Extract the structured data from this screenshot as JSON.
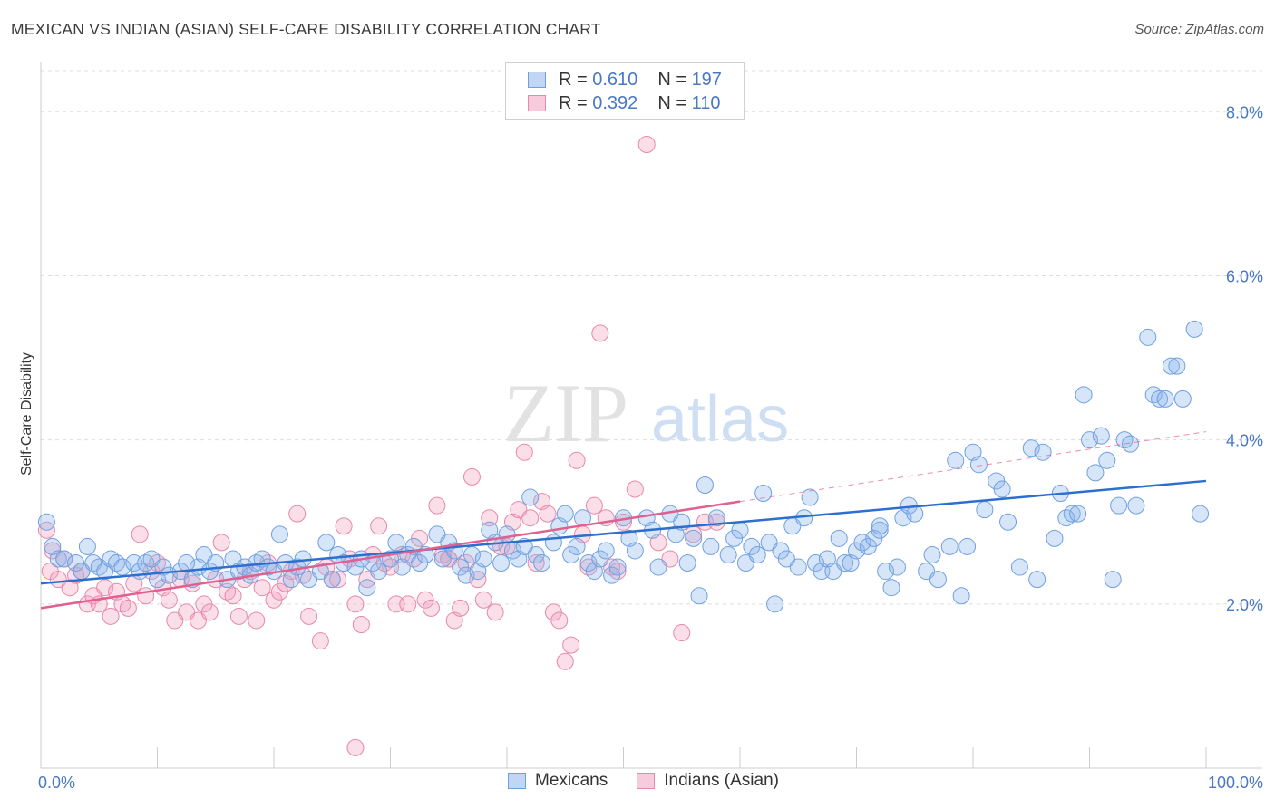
{
  "title": "MEXICAN VS INDIAN (ASIAN) SELF-CARE DISABILITY CORRELATION CHART",
  "source": "Source: ZipAtlas.com",
  "colors": {
    "blue": "#6fa0e0",
    "blue_fill": "rgba(140,180,235,0.35)",
    "blue_line": "#2d6fcf",
    "pink": "#e888ab",
    "pink_fill": "rgba(240,160,190,0.35)",
    "pink_line": "#e06090",
    "axis_text": "#4a78c4",
    "grid": "#dddddd"
  },
  "legend": {
    "rows": [
      {
        "r_label": "R =",
        "r_value": "0.610",
        "n_label": "N =",
        "n_value": "197"
      },
      {
        "r_label": "R =",
        "r_value": "0.392",
        "n_label": "N =",
        "n_value": "110"
      }
    ]
  },
  "bottom_legend": {
    "mexicans": "Mexicans",
    "indians": "Indians (Asian)"
  },
  "watermark": {
    "zip": "ZIP",
    "atlas": "atlas"
  },
  "chart_data": {
    "type": "scatter",
    "title": "MEXICAN VS INDIAN (ASIAN) SELF-CARE DISABILITY CORRELATION CHART",
    "xlabel": "",
    "ylabel": "Self-Care Disability",
    "xlim": [
      0,
      100
    ],
    "ylim": [
      0,
      8.5
    ],
    "x_ticks": [
      0,
      10,
      20,
      30,
      40,
      50,
      60,
      70,
      80,
      90,
      100
    ],
    "x_tick_labels": {
      "0": "0.0%",
      "100": "100.0%"
    },
    "y_ticks": [
      2,
      4,
      6,
      8
    ],
    "y_tick_labels": [
      "2.0%",
      "4.0%",
      "6.0%",
      "8.0%"
    ],
    "series": [
      {
        "name": "Mexicans",
        "r": 0.61,
        "n": 197,
        "trend": {
          "x0": 0,
          "y0": 2.25,
          "x1": 100,
          "y1": 3.5
        },
        "points": [
          [
            0.5,
            3.0
          ],
          [
            1.0,
            2.7
          ],
          [
            1.5,
            2.55
          ],
          [
            2.0,
            2.55
          ],
          [
            3.0,
            2.5
          ],
          [
            3.5,
            2.4
          ],
          [
            4.0,
            2.7
          ],
          [
            4.5,
            2.5
          ],
          [
            5.0,
            2.45
          ],
          [
            5.5,
            2.4
          ],
          [
            6.0,
            2.55
          ],
          [
            6.5,
            2.5
          ],
          [
            7.0,
            2.45
          ],
          [
            8.0,
            2.5
          ],
          [
            8.5,
            2.4
          ],
          [
            9.0,
            2.5
          ],
          [
            9.5,
            2.55
          ],
          [
            10.0,
            2.3
          ],
          [
            10.5,
            2.45
          ],
          [
            11.0,
            2.35
          ],
          [
            12.0,
            2.4
          ],
          [
            12.5,
            2.5
          ],
          [
            13.0,
            2.3
          ],
          [
            13.5,
            2.45
          ],
          [
            14.0,
            2.6
          ],
          [
            14.5,
            2.4
          ],
          [
            15.0,
            2.5
          ],
          [
            16.0,
            2.3
          ],
          [
            16.5,
            2.55
          ],
          [
            17.0,
            2.4
          ],
          [
            17.5,
            2.45
          ],
          [
            18.0,
            2.35
          ],
          [
            18.5,
            2.5
          ],
          [
            19.0,
            2.55
          ],
          [
            19.5,
            2.45
          ],
          [
            20.0,
            2.4
          ],
          [
            20.5,
            2.85
          ],
          [
            21.0,
            2.5
          ],
          [
            21.5,
            2.3
          ],
          [
            22.0,
            2.45
          ],
          [
            22.5,
            2.55
          ],
          [
            23.0,
            2.3
          ],
          [
            24.0,
            2.4
          ],
          [
            24.5,
            2.75
          ],
          [
            25.0,
            2.3
          ],
          [
            25.5,
            2.6
          ],
          [
            26.0,
            2.5
          ],
          [
            27.0,
            2.45
          ],
          [
            27.5,
            2.55
          ],
          [
            28.0,
            2.2
          ],
          [
            28.5,
            2.5
          ],
          [
            29.0,
            2.4
          ],
          [
            30.0,
            2.55
          ],
          [
            30.5,
            2.75
          ],
          [
            31.0,
            2.45
          ],
          [
            31.5,
            2.6
          ],
          [
            32.0,
            2.7
          ],
          [
            32.5,
            2.5
          ],
          [
            33.0,
            2.6
          ],
          [
            34.0,
            2.85
          ],
          [
            34.5,
            2.55
          ],
          [
            35.0,
            2.75
          ],
          [
            35.5,
            2.65
          ],
          [
            36.0,
            2.45
          ],
          [
            36.5,
            2.35
          ],
          [
            37.0,
            2.6
          ],
          [
            37.5,
            2.4
          ],
          [
            38.0,
            2.55
          ],
          [
            38.5,
            2.9
          ],
          [
            39.0,
            2.75
          ],
          [
            39.5,
            2.5
          ],
          [
            40.0,
            2.85
          ],
          [
            40.5,
            2.65
          ],
          [
            41.0,
            2.55
          ],
          [
            41.5,
            2.7
          ],
          [
            42.0,
            3.3
          ],
          [
            42.5,
            2.6
          ],
          [
            43.0,
            2.5
          ],
          [
            44.0,
            2.75
          ],
          [
            44.5,
            2.95
          ],
          [
            45.0,
            3.1
          ],
          [
            45.5,
            2.6
          ],
          [
            46.0,
            2.7
          ],
          [
            46.5,
            3.05
          ],
          [
            47.0,
            2.5
          ],
          [
            47.5,
            2.4
          ],
          [
            48.0,
            2.55
          ],
          [
            48.5,
            2.65
          ],
          [
            49.0,
            2.35
          ],
          [
            49.5,
            2.45
          ],
          [
            50.0,
            3.05
          ],
          [
            50.5,
            2.8
          ],
          [
            51.0,
            2.65
          ],
          [
            52.0,
            3.05
          ],
          [
            52.5,
            2.9
          ],
          [
            53.0,
            2.45
          ],
          [
            54.0,
            3.1
          ],
          [
            54.5,
            2.85
          ],
          [
            55.0,
            3.0
          ],
          [
            55.5,
            2.5
          ],
          [
            56.0,
            2.8
          ],
          [
            56.5,
            2.1
          ],
          [
            57.0,
            3.45
          ],
          [
            57.5,
            2.7
          ],
          [
            58.0,
            3.05
          ],
          [
            59.0,
            2.6
          ],
          [
            59.5,
            2.8
          ],
          [
            60.0,
            2.9
          ],
          [
            60.5,
            2.5
          ],
          [
            61.0,
            2.7
          ],
          [
            61.5,
            2.6
          ],
          [
            62.0,
            3.35
          ],
          [
            62.5,
            2.75
          ],
          [
            63.0,
            2.0
          ],
          [
            63.5,
            2.65
          ],
          [
            64.0,
            2.55
          ],
          [
            64.5,
            2.95
          ],
          [
            65.0,
            2.45
          ],
          [
            65.5,
            3.05
          ],
          [
            66.0,
            3.3
          ],
          [
            66.5,
            2.5
          ],
          [
            67.0,
            2.4
          ],
          [
            67.5,
            2.55
          ],
          [
            68.0,
            2.4
          ],
          [
            68.5,
            2.8
          ],
          [
            69.0,
            2.5
          ],
          [
            69.5,
            2.5
          ],
          [
            70.0,
            2.65
          ],
          [
            70.5,
            2.75
          ],
          [
            71.0,
            2.7
          ],
          [
            71.5,
            2.8
          ],
          [
            72.0,
            2.9
          ],
          [
            72.5,
            2.4
          ],
          [
            73.0,
            2.2
          ],
          [
            73.5,
            2.45
          ],
          [
            74.0,
            3.05
          ],
          [
            74.5,
            3.2
          ],
          [
            75.0,
            3.1
          ],
          [
            76.0,
            2.4
          ],
          [
            76.5,
            2.6
          ],
          [
            77.0,
            2.3
          ],
          [
            78.0,
            2.7
          ],
          [
            78.5,
            3.75
          ],
          [
            79.0,
            2.1
          ],
          [
            79.5,
            2.7
          ],
          [
            80.0,
            3.85
          ],
          [
            80.5,
            3.7
          ],
          [
            81.0,
            3.15
          ],
          [
            82.0,
            3.5
          ],
          [
            82.5,
            3.4
          ],
          [
            83.0,
            3.0
          ],
          [
            84.0,
            2.45
          ],
          [
            85.0,
            3.9
          ],
          [
            85.5,
            2.3
          ],
          [
            86.0,
            3.85
          ],
          [
            87.0,
            2.8
          ],
          [
            87.5,
            3.35
          ],
          [
            88.0,
            3.05
          ],
          [
            88.5,
            3.1
          ],
          [
            89.0,
            3.1
          ],
          [
            89.5,
            4.55
          ],
          [
            90.0,
            4.0
          ],
          [
            90.5,
            3.6
          ],
          [
            91.0,
            4.05
          ],
          [
            91.5,
            3.75
          ],
          [
            92.0,
            2.3
          ],
          [
            92.5,
            3.2
          ],
          [
            93.0,
            4.0
          ],
          [
            93.5,
            3.95
          ],
          [
            94.0,
            3.2
          ],
          [
            95.0,
            5.25
          ],
          [
            95.5,
            4.55
          ],
          [
            96.0,
            4.5
          ],
          [
            96.5,
            4.5
          ],
          [
            97.0,
            4.9
          ],
          [
            97.5,
            4.9
          ],
          [
            98.0,
            4.5
          ],
          [
            99.0,
            5.35
          ],
          [
            99.5,
            3.1
          ],
          [
            72.0,
            2.95
          ]
        ]
      },
      {
        "name": "Indians (Asian)",
        "r": 0.392,
        "n": 110,
        "trend": {
          "x0": 0,
          "y0": 1.95,
          "x1": 60,
          "y1": 3.25
        },
        "trend_ext": {
          "x0": 60,
          "y0": 3.25,
          "x1": 100,
          "y1": 4.1
        },
        "points": [
          [
            0.5,
            2.9
          ],
          [
            0.8,
            2.4
          ],
          [
            1.0,
            2.65
          ],
          [
            1.5,
            2.3
          ],
          [
            2.0,
            2.55
          ],
          [
            2.5,
            2.2
          ],
          [
            3.0,
            2.35
          ],
          [
            3.5,
            2.4
          ],
          [
            4.0,
            2.0
          ],
          [
            4.5,
            2.1
          ],
          [
            5.0,
            2.0
          ],
          [
            5.5,
            2.2
          ],
          [
            6.0,
            1.85
          ],
          [
            6.5,
            2.15
          ],
          [
            7.0,
            2.0
          ],
          [
            7.5,
            1.95
          ],
          [
            8.0,
            2.25
          ],
          [
            8.5,
            2.85
          ],
          [
            9.0,
            2.1
          ],
          [
            9.5,
            2.4
          ],
          [
            10.0,
            2.5
          ],
          [
            10.5,
            2.2
          ],
          [
            11.0,
            2.05
          ],
          [
            11.5,
            1.8
          ],
          [
            12.0,
            2.3
          ],
          [
            12.5,
            1.9
          ],
          [
            13.0,
            2.25
          ],
          [
            13.5,
            1.8
          ],
          [
            14.0,
            2.0
          ],
          [
            14.5,
            1.9
          ],
          [
            15.0,
            2.3
          ],
          [
            15.5,
            2.75
          ],
          [
            16.0,
            2.15
          ],
          [
            16.5,
            2.1
          ],
          [
            17.0,
            1.85
          ],
          [
            17.5,
            2.3
          ],
          [
            18.0,
            2.4
          ],
          [
            18.5,
            1.8
          ],
          [
            19.0,
            2.2
          ],
          [
            19.5,
            2.5
          ],
          [
            20.0,
            2.05
          ],
          [
            20.5,
            2.15
          ],
          [
            21.0,
            2.25
          ],
          [
            21.5,
            2.4
          ],
          [
            22.0,
            3.1
          ],
          [
            22.5,
            2.35
          ],
          [
            23.0,
            1.85
          ],
          [
            24.0,
            1.55
          ],
          [
            24.5,
            2.45
          ],
          [
            25.0,
            2.3
          ],
          [
            25.5,
            2.3
          ],
          [
            26.0,
            2.95
          ],
          [
            26.5,
            2.55
          ],
          [
            27.0,
            2.0
          ],
          [
            27.5,
            1.75
          ],
          [
            28.0,
            2.3
          ],
          [
            28.5,
            2.6
          ],
          [
            29.0,
            2.95
          ],
          [
            29.5,
            2.5
          ],
          [
            30.0,
            2.45
          ],
          [
            30.5,
            2.0
          ],
          [
            31.0,
            2.6
          ],
          [
            31.5,
            2.0
          ],
          [
            32.0,
            2.55
          ],
          [
            32.5,
            2.8
          ],
          [
            33.0,
            2.05
          ],
          [
            33.5,
            1.95
          ],
          [
            34.0,
            3.2
          ],
          [
            34.5,
            2.6
          ],
          [
            35.0,
            2.55
          ],
          [
            35.5,
            1.8
          ],
          [
            36.0,
            1.95
          ],
          [
            36.5,
            2.5
          ],
          [
            37.0,
            3.55
          ],
          [
            37.5,
            2.3
          ],
          [
            38.0,
            2.05
          ],
          [
            38.5,
            3.05
          ],
          [
            39.0,
            1.9
          ],
          [
            39.5,
            2.7
          ],
          [
            40.0,
            2.7
          ],
          [
            40.5,
            3.0
          ],
          [
            41.0,
            3.15
          ],
          [
            41.5,
            3.85
          ],
          [
            42.0,
            3.05
          ],
          [
            42.5,
            2.5
          ],
          [
            43.0,
            3.25
          ],
          [
            43.5,
            3.1
          ],
          [
            44.0,
            1.9
          ],
          [
            44.5,
            1.8
          ],
          [
            45.0,
            1.3
          ],
          [
            45.5,
            1.5
          ],
          [
            46.0,
            3.75
          ],
          [
            46.5,
            2.85
          ],
          [
            47.0,
            2.45
          ],
          [
            47.5,
            3.2
          ],
          [
            48.0,
            5.3
          ],
          [
            48.5,
            3.05
          ],
          [
            49.0,
            2.45
          ],
          [
            49.5,
            2.4
          ],
          [
            50.0,
            3.0
          ],
          [
            51.0,
            3.4
          ],
          [
            52.0,
            7.6
          ],
          [
            53.0,
            2.75
          ],
          [
            54.0,
            2.55
          ],
          [
            55.0,
            1.65
          ],
          [
            56.0,
            2.85
          ],
          [
            57.0,
            3.0
          ],
          [
            58.0,
            3.0
          ],
          [
            27.0,
            0.25
          ],
          [
            35.0,
            2.55
          ]
        ]
      }
    ]
  }
}
